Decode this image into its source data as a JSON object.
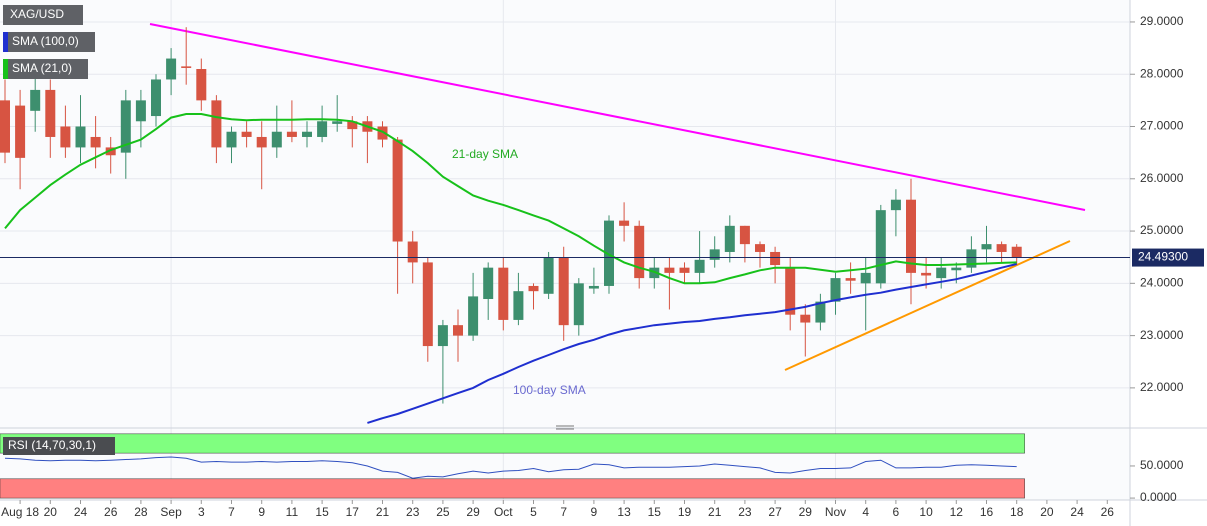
{
  "chart_data": {
    "type": "candlestick",
    "title": "XAG/USD",
    "up_color": "#3d8f6e",
    "down_color": "#d75442",
    "categories": [
      null,
      "Aug 18",
      null,
      "20",
      null,
      "24",
      null,
      "26",
      null,
      "28",
      null,
      "Sep",
      null,
      "3",
      null,
      "7",
      null,
      "9",
      null,
      "11",
      null,
      "15",
      null,
      "17",
      null,
      "21",
      null,
      "23",
      null,
      "25",
      null,
      "29",
      null,
      "Oct",
      null,
      "5",
      null,
      "7",
      null,
      "9",
      null,
      "13",
      null,
      "15",
      null,
      "19",
      null,
      "21",
      null,
      "23",
      null,
      "27",
      null,
      "29",
      null,
      "Nov",
      null,
      "4",
      null,
      "6",
      null,
      "10",
      null,
      "12",
      null,
      "16",
      null,
      "18",
      null,
      "20",
      null,
      "24",
      null,
      "26"
    ],
    "open": [
      27.5,
      27.4,
      27.3,
      27.7,
      27.0,
      26.6,
      26.8,
      26.6,
      26.5,
      27.1,
      27.2,
      27.9,
      28.15,
      28.1,
      27.5,
      26.6,
      26.9,
      26.8,
      26.6,
      26.9,
      26.8,
      26.8,
      27.05,
      27.1,
      27.1,
      27.0,
      26.75,
      24.8,
      24.4,
      22.8,
      23.2,
      23.0,
      23.7,
      24.3,
      23.3,
      23.95,
      23.8,
      24.5,
      23.2,
      23.9,
      23.95,
      25.2,
      25.1,
      24.1,
      24.3,
      24.3,
      24.2,
      24.45,
      24.6,
      25.1,
      24.75,
      24.6,
      24.3,
      23.4,
      23.25,
      23.65,
      24.1,
      24.0,
      24.0,
      25.4,
      25.6,
      24.2,
      24.1,
      24.25,
      24.3,
      24.65,
      24.75,
      24.7,
      null,
      null,
      null,
      null,
      null,
      null
    ],
    "high": [
      27.9,
      27.7,
      28.0,
      27.9,
      27.4,
      27.6,
      27.2,
      26.8,
      27.7,
      27.7,
      28.0,
      28.5,
      28.9,
      28.3,
      27.6,
      27.0,
      27.1,
      27.1,
      27.4,
      27.5,
      27.1,
      27.4,
      27.6,
      27.2,
      27.2,
      27.1,
      26.8,
      25.0,
      24.5,
      23.3,
      23.5,
      24.2,
      24.4,
      24.5,
      24.2,
      24.0,
      24.6,
      24.7,
      24.1,
      24.3,
      25.3,
      25.55,
      25.2,
      24.5,
      24.5,
      24.4,
      25.0,
      24.9,
      25.3,
      25.1,
      24.8,
      24.7,
      24.5,
      23.6,
      23.8,
      24.2,
      24.4,
      24.5,
      25.5,
      25.8,
      26.0,
      24.5,
      24.5,
      24.4,
      24.9,
      25.1,
      24.8,
      24.75,
      null,
      null,
      null,
      null,
      null,
      null
    ],
    "low": [
      26.3,
      25.8,
      26.9,
      26.4,
      26.4,
      26.3,
      26.2,
      26.1,
      26.0,
      26.6,
      27.0,
      27.6,
      27.8,
      27.3,
      26.3,
      26.3,
      26.6,
      25.8,
      26.4,
      26.7,
      26.6,
      26.7,
      26.9,
      26.6,
      26.3,
      26.6,
      23.8,
      24.0,
      22.5,
      21.7,
      22.5,
      22.9,
      23.3,
      23.1,
      23.2,
      23.5,
      23.7,
      22.9,
      23.0,
      23.8,
      23.8,
      24.8,
      23.9,
      23.9,
      23.5,
      24.0,
      24.0,
      24.3,
      24.4,
      24.4,
      24.3,
      24.0,
      23.1,
      22.6,
      23.1,
      23.4,
      23.8,
      23.1,
      23.9,
      24.9,
      23.6,
      23.9,
      23.9,
      24.0,
      24.2,
      24.4,
      24.4,
      24.35,
      null,
      null,
      null,
      null,
      null,
      null
    ],
    "close": [
      26.5,
      26.4,
      27.7,
      26.8,
      26.6,
      27.0,
      26.6,
      26.45,
      27.5,
      27.5,
      27.9,
      28.3,
      28.12,
      27.5,
      26.6,
      26.9,
      26.8,
      26.6,
      26.9,
      26.8,
      26.9,
      27.1,
      27.1,
      26.95,
      26.9,
      26.75,
      24.8,
      24.4,
      22.8,
      23.2,
      23.0,
      23.75,
      24.3,
      23.3,
      23.85,
      23.85,
      24.5,
      23.2,
      24.0,
      23.95,
      25.2,
      25.1,
      24.1,
      24.3,
      24.2,
      24.2,
      24.45,
      24.65,
      25.1,
      24.75,
      24.6,
      24.35,
      23.4,
      23.25,
      23.65,
      24.1,
      24.05,
      24.2,
      25.4,
      25.6,
      24.2,
      24.15,
      24.3,
      24.3,
      24.65,
      24.75,
      24.6,
      24.49,
      null,
      null,
      null,
      null,
      null,
      null
    ],
    "series": [
      {
        "name": "SMA (100,0)",
        "color": "#1f2fd0",
        "annotation": "100-day SMA",
        "annotation_color": "#6a6ad0",
        "values": [
          null,
          null,
          null,
          null,
          null,
          null,
          null,
          null,
          null,
          null,
          null,
          null,
          null,
          null,
          null,
          null,
          null,
          null,
          null,
          null,
          null,
          null,
          null,
          null,
          21.33,
          21.42,
          21.5,
          21.6,
          21.7,
          21.8,
          21.9,
          22.0,
          22.15,
          22.27,
          22.4,
          22.52,
          22.63,
          22.74,
          22.84,
          22.92,
          23.02,
          23.1,
          23.15,
          23.2,
          23.23,
          23.26,
          23.28,
          23.32,
          23.35,
          23.39,
          23.42,
          23.45,
          23.5,
          23.55,
          23.62,
          23.68,
          23.73,
          23.78,
          23.82,
          23.88,
          23.93,
          23.98,
          24.03,
          24.08,
          24.15,
          24.22,
          24.3,
          24.37,
          null,
          null,
          null,
          null,
          null,
          null
        ]
      },
      {
        "name": "SMA (21,0)",
        "color": "#17c11a",
        "annotation": "21-day SMA",
        "annotation_color": "#22aa22",
        "values": [
          25.05,
          25.4,
          25.64,
          25.88,
          26.08,
          26.27,
          26.41,
          26.55,
          26.65,
          26.75,
          26.95,
          27.17,
          27.24,
          27.24,
          27.18,
          27.14,
          27.12,
          27.13,
          27.13,
          27.13,
          27.14,
          27.14,
          27.13,
          27.1,
          27.0,
          26.9,
          26.72,
          26.53,
          26.3,
          26.04,
          25.86,
          25.68,
          25.58,
          25.5,
          25.4,
          25.3,
          25.2,
          25.05,
          24.9,
          24.72,
          24.55,
          24.4,
          24.3,
          24.22,
          24.1,
          24.0,
          24.0,
          24.02,
          24.1,
          24.17,
          24.25,
          24.3,
          24.3,
          24.3,
          24.26,
          24.22,
          24.25,
          24.28,
          24.35,
          24.42,
          24.38,
          24.35,
          24.35,
          24.36,
          24.37,
          24.38,
          24.39,
          24.4,
          null,
          null,
          null,
          null,
          null,
          null
        ]
      }
    ],
    "last_price": {
      "value": 24.493,
      "label": "24.49300"
    },
    "ylim": [
      21.29,
      29.42
    ],
    "yticks": [
      {
        "value": 22,
        "label": "22.0000"
      },
      {
        "value": 23,
        "label": "23.0000"
      },
      {
        "value": 24,
        "label": "24.0000"
      },
      {
        "value": 25,
        "label": "25.0000"
      },
      {
        "value": 26,
        "label": "26.0000"
      },
      {
        "value": 27,
        "label": "27.0000"
      },
      {
        "value": 28,
        "label": "28.0000"
      },
      {
        "value": 29,
        "label": "29.0000"
      }
    ],
    "grid": true,
    "indicator": {
      "name": "RSI (14,70,30,1)",
      "color": "#3050c0",
      "values": [
        62,
        61,
        59,
        58,
        59,
        59,
        58,
        59,
        60,
        61,
        63,
        64,
        62,
        56,
        57,
        56,
        56,
        57,
        56,
        57,
        57,
        58,
        57,
        55,
        50,
        42,
        40,
        31,
        34,
        33,
        38,
        42,
        39,
        42,
        43,
        46,
        41,
        44,
        45,
        53,
        52,
        47,
        48,
        48,
        48,
        49,
        50,
        53,
        51,
        49,
        47,
        40,
        39,
        43,
        46,
        46,
        47,
        57,
        59,
        47,
        47,
        48,
        48,
        51,
        52,
        51,
        50,
        49,
        null,
        null,
        null,
        null,
        null,
        null
      ],
      "ylim": [
        -3,
        106
      ],
      "yticks": [
        {
          "value": 0,
          "label": "0.0000"
        },
        {
          "value": 50,
          "label": "50.0000"
        }
      ],
      "bands": [
        {
          "from": 70,
          "to": 100,
          "color": "#80ff80"
        },
        {
          "from": 0,
          "to": 30,
          "color": "#ff8080"
        }
      ]
    }
  }
}
